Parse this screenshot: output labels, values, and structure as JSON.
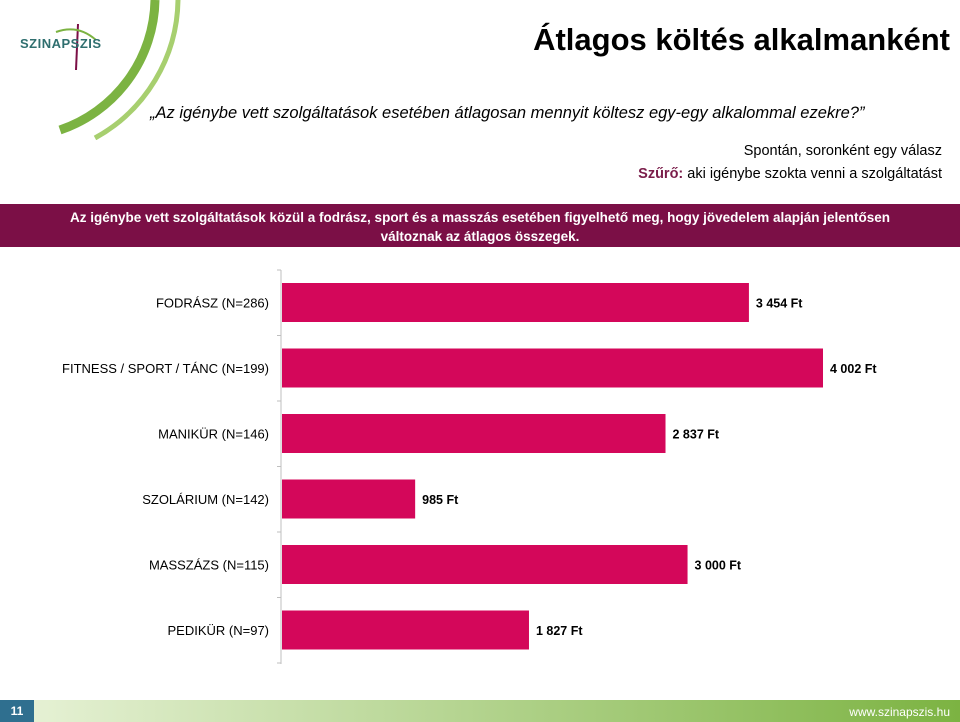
{
  "logo": {
    "text": "SZINAPSZIS"
  },
  "title": "Átlagos költés alkalmanként",
  "question": "„Az igénybe vett szolgáltatások esetében átlagosan mennyit költesz egy-egy alkalommal ezekre?”",
  "meta": {
    "line1": "Spontán, soronként egy válasz",
    "filter_label": "Szűrő:",
    "filter_text": " aki igénybe szokta venni a szolgáltatást"
  },
  "banner": {
    "line1": "Az igénybe vett szolgáltatások közül a fodrász, sport és a masszás esetében figyelhető meg, hogy jövedelem alapján jelentősen",
    "line2": "változnak az átlagos összegek."
  },
  "colors": {
    "bar": "#d4075a",
    "banner": "#7b0f46",
    "accent_green": "#7cb342"
  },
  "chart_data": {
    "type": "bar",
    "orientation": "horizontal",
    "categories": [
      "FODRÁSZ (N=286)",
      "FITNESS / SPORT / TÁNC (N=199)",
      "MANIKÜR (N=146)",
      "SZOLÁRIUM (N=142)",
      "MASSZÁZS (N=115)",
      "PEDIKÜR (N=97)"
    ],
    "values": [
      3454,
      4002,
      2837,
      985,
      3000,
      1827
    ],
    "labels": [
      "3 454 Ft",
      "4 002 Ft",
      "2 837 Ft",
      "985 Ft",
      "3 000 Ft",
      "1 827 Ft"
    ],
    "xlim": [
      0,
      4002
    ],
    "grid": false
  },
  "footer": {
    "page": "11",
    "site": "www.szinapszis.hu"
  }
}
